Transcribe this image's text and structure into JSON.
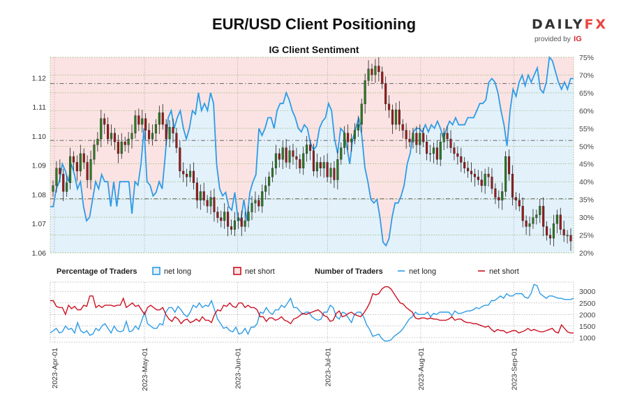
{
  "title": "EUR/USD Client Positioning",
  "subtitle": "IG Client Sentiment",
  "brand": {
    "name_a": "DAILY",
    "name_b": "FX",
    "provided_by": "provided by",
    "ig": "IG"
  },
  "colors": {
    "net_long_fill": "#e3f1fb",
    "net_short_fill": "#fbe3e3",
    "net_long_line": "#2e9be6",
    "net_short_line": "#cc1021",
    "candle_up": "#2d7a22",
    "candle_down": "#9b1a1a",
    "grid": "#7aa64a",
    "dashed": "#666666"
  },
  "legend": {
    "pct_title": "Percentage of Traders",
    "pct_long": "net long",
    "pct_short": "net short",
    "num_title": "Number of Traders",
    "num_long": "net long",
    "num_short": "net short"
  },
  "chart_data": [
    {
      "type": "candlestick+area",
      "title": "IG Client Sentiment",
      "price_axis": {
        "side": "left",
        "ylim": [
          1.06,
          1.127
        ],
        "ticks": [
          "1.06",
          "1.07",
          "1.08",
          "1.09",
          "1.10",
          "1.11",
          "1.12"
        ]
      },
      "pct_axis": {
        "side": "right",
        "ylim": [
          20,
          75
        ],
        "ticks": [
          "20%",
          "25%",
          "30%",
          "35%",
          "40%",
          "45%",
          "50%",
          "55%",
          "60%",
          "65%",
          "70%",
          "75%"
        ]
      },
      "x_dates": [
        "2023-04-01",
        "2023-09-20"
      ],
      "date_ticks": [
        "2023-Apr-01",
        "2023-May-01",
        "2023-Jun-01",
        "2023-Jul-01",
        "2023-Aug-01",
        "2023-Sep-01"
      ],
      "reference_lines_price": [
        1.118,
        1.0985,
        1.0785
      ],
      "net_long_pct": [
        33,
        33,
        38,
        40,
        45,
        43,
        40,
        45,
        42,
        38,
        40,
        33,
        29,
        30,
        35,
        40,
        38,
        42,
        40,
        40,
        33,
        40,
        33,
        40,
        40,
        40,
        40,
        31,
        40,
        39,
        45,
        55,
        40,
        39,
        36,
        37,
        40,
        38,
        47,
        58,
        60,
        55,
        58,
        60,
        55,
        52,
        55,
        60,
        59,
        65,
        60,
        62,
        60,
        65,
        62,
        45,
        38,
        36,
        37,
        33,
        32,
        37,
        30,
        29,
        35,
        29,
        37,
        40,
        42,
        55,
        53,
        55,
        58,
        58,
        55,
        60,
        62,
        62,
        65,
        63,
        60,
        58,
        55,
        54,
        56,
        55,
        51,
        49,
        50,
        55,
        57,
        58,
        62,
        60,
        52,
        48,
        55,
        54,
        50,
        45,
        52,
        55,
        58,
        53,
        44,
        40,
        35,
        34,
        35,
        30,
        23,
        22,
        24,
        30,
        34,
        34,
        36,
        39,
        45,
        48,
        54,
        55,
        55,
        54,
        56,
        54,
        56,
        55,
        57,
        55,
        52,
        55,
        57,
        56,
        58,
        56,
        56,
        56,
        58,
        58,
        58,
        60,
        62,
        62,
        63,
        68,
        69,
        68,
        65,
        60,
        56,
        50,
        60,
        66,
        64,
        68,
        70,
        67,
        70,
        68,
        70,
        72,
        66,
        65,
        68,
        75,
        74,
        71,
        68,
        66,
        68,
        66,
        69,
        69
      ],
      "net_short_pct_note": "net short % = 100 - net long %",
      "candles_close": [
        1.083,
        1.089,
        1.087,
        1.081,
        1.084,
        1.093,
        1.091,
        1.088,
        1.094,
        1.091,
        1.085,
        1.092,
        1.097,
        1.099,
        1.106,
        1.104,
        1.099,
        1.101,
        1.098,
        1.094,
        1.098,
        1.097,
        1.099,
        1.101,
        1.107,
        1.104,
        1.106,
        1.102,
        1.099,
        1.101,
        1.104,
        1.108,
        1.104,
        1.099,
        1.103,
        1.101,
        1.096,
        1.088,
        1.087,
        1.086,
        1.088,
        1.084,
        1.078,
        1.081,
        1.078,
        1.076,
        1.079,
        1.074,
        1.072,
        1.071,
        1.074,
        1.069,
        1.068,
        1.071,
        1.072,
        1.069,
        1.071,
        1.074,
        1.077,
        1.078,
        1.076,
        1.081,
        1.083,
        1.086,
        1.089,
        1.094,
        1.092,
        1.096,
        1.091,
        1.095,
        1.093,
        1.092,
        1.089,
        1.094,
        1.097,
        1.095,
        1.088,
        1.091,
        1.089,
        1.091,
        1.086,
        1.089,
        1.085,
        1.092,
        1.096,
        1.101,
        1.098,
        1.099,
        1.102,
        1.104,
        1.111,
        1.119,
        1.123,
        1.121,
        1.124,
        1.122,
        1.118,
        1.111,
        1.109,
        1.104,
        1.109,
        1.104,
        1.102,
        1.099,
        1.098,
        1.101,
        1.097,
        1.101,
        1.098,
        1.094,
        1.094,
        1.096,
        1.092,
        1.098,
        1.101,
        1.099,
        1.096,
        1.094,
        1.093,
        1.091,
        1.089,
        1.088,
        1.087,
        1.086,
        1.085,
        1.083,
        1.087,
        1.086,
        1.082,
        1.079,
        1.078,
        1.081,
        1.093,
        1.087,
        1.079,
        1.078,
        1.076,
        1.071,
        1.069,
        1.07,
        1.072,
        1.073,
        1.076,
        1.069,
        1.066,
        1.065,
        1.07,
        1.073,
        1.068,
        1.066,
        1.066,
        1.064
      ]
    },
    {
      "type": "line",
      "title": "Number of Traders",
      "yaxis": {
        "side": "right",
        "ylim": [
          800,
          3400
        ],
        "ticks": [
          "1000",
          "1500",
          "2000",
          "2500",
          "3000"
        ]
      },
      "series": [
        {
          "name": "net long",
          "values": [
            1200,
            1300,
            1400,
            1200,
            1250,
            1500,
            1350,
            1400,
            1200,
            1650,
            1300,
            1200,
            1300,
            1100,
            1150,
            1400,
            1300,
            1500,
            1600,
            1400,
            1200,
            1500,
            1300,
            1250,
            1300,
            1700,
            1250,
            1300,
            1500,
            1350,
            1700,
            2100,
            1600,
            1500,
            1400,
            1400,
            1600,
            1550,
            2100,
            2300,
            2300,
            2100,
            2350,
            2200,
            2000,
            1900,
            2100,
            2400,
            2300,
            2500,
            2300,
            2400,
            2350,
            2600,
            2200,
            1800,
            1600,
            1400,
            1450,
            1300,
            1250,
            1450,
            1150,
            1200,
            1400,
            1150,
            1450,
            1450,
            1600,
            2100,
            2050,
            2300,
            2100,
            2000,
            2200,
            2200,
            2400,
            2300,
            2500,
            2700,
            2300,
            2300,
            2150,
            2000,
            2100,
            2100,
            1900,
            1800,
            1750,
            1800,
            2100,
            2100,
            2400,
            2300,
            1900,
            1800,
            2100,
            2050,
            1850,
            1650,
            2000,
            2100,
            2100,
            1900,
            1550,
            1350,
            1050,
            1100,
            1150,
            950,
            850,
            850,
            900,
            1050,
            1150,
            1250,
            1400,
            1600,
            1800,
            1900,
            2100,
            2000,
            2000,
            2000,
            2100,
            1900,
            2050,
            2000,
            2100,
            2100,
            2100,
            2100,
            1950,
            2150,
            2050,
            2050,
            2100,
            2150,
            2150,
            2200,
            2300,
            2250,
            2350,
            2400,
            2400,
            2600,
            2600,
            2700,
            2800,
            2700,
            2900,
            2800,
            2800,
            2900,
            2900,
            2900,
            2750,
            2700,
            2900,
            3300,
            3250,
            2900,
            2800,
            2700,
            2800,
            2800,
            2750,
            2700,
            2700,
            2650,
            2650,
            2650,
            2700
          ]
        },
        {
          "name": "net short",
          "values": [
            2600,
            2600,
            2350,
            2300,
            2300,
            2000,
            2400,
            2250,
            2350,
            2200,
            2200,
            2400,
            2350,
            2800,
            2800,
            2300,
            2400,
            2300,
            2400,
            2400,
            2400,
            2350,
            2400,
            2400,
            2700,
            2300,
            2400,
            2500,
            2350,
            2400,
            2200,
            2000,
            2300,
            2400,
            2300,
            2200,
            2200,
            2300,
            2000,
            1800,
            1700,
            1900,
            1800,
            1600,
            1750,
            1800,
            1650,
            1700,
            1800,
            1700,
            1900,
            1750,
            1750,
            1650,
            2000,
            2200,
            2150,
            2400,
            2350,
            2500,
            2350,
            2300,
            2500,
            2500,
            2300,
            2400,
            2300,
            2300,
            2200,
            1900,
            1900,
            1700,
            1850,
            1850,
            1750,
            1800,
            1900,
            1750,
            1700,
            1600,
            1800,
            1850,
            1950,
            2050,
            2000,
            2050,
            2100,
            2150,
            2200,
            2100,
            1950,
            1900,
            1700,
            1750,
            2050,
            2150,
            1900,
            1950,
            2050,
            2100,
            2000,
            1950,
            1900,
            2050,
            2250,
            2500,
            2900,
            2850,
            2900,
            3100,
            3200,
            3200,
            3100,
            2900,
            2700,
            2500,
            2450,
            2300,
            2200,
            2100,
            1850,
            1800,
            1850,
            1850,
            1800,
            1850,
            1800,
            1800,
            1750,
            1750,
            1750,
            1800,
            1900,
            1750,
            1800,
            1800,
            1700,
            1650,
            1650,
            1600,
            1600,
            1550,
            1500,
            1450,
            1500,
            1350,
            1250,
            1350,
            1300,
            1300,
            1200,
            1250,
            1300,
            1300,
            1200,
            1250,
            1300,
            1400,
            1300,
            1350,
            1300,
            1250,
            1250,
            1300,
            1350,
            1400,
            1250,
            1200,
            1550,
            1400,
            1250,
            1200,
            1200
          ]
        }
      ]
    }
  ]
}
